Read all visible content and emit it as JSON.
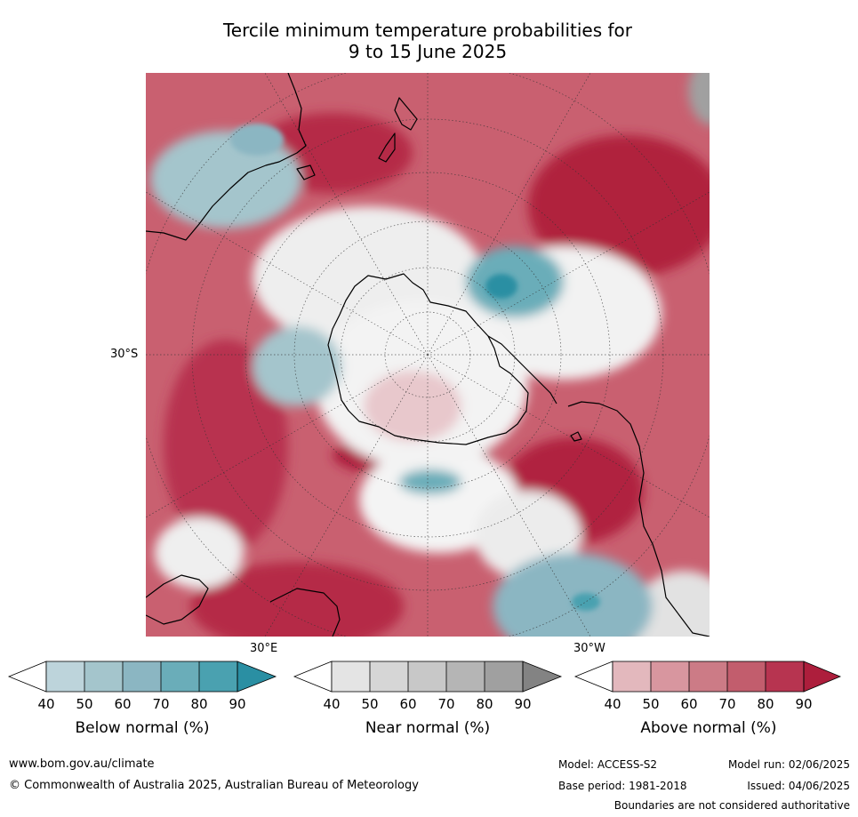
{
  "title_line1": "Tercile minimum temperature probabilities for",
  "title_line2": "9 to 15 June 2025",
  "map": {
    "lat_label": "30°S",
    "lon_label_east": "30°E",
    "lon_label_west": "30°W",
    "colors": {
      "below": [
        "#bdd4db",
        "#a4c5cc",
        "#8bb6c2",
        "#6aadb9",
        "#4aa1b0",
        "#2a8fa3"
      ],
      "near": [
        "#e4e4e4",
        "#d6d6d6",
        "#c8c8c8",
        "#b5b5b5",
        "#a0a0a0",
        "#838383"
      ],
      "above": [
        "#e3b8bd",
        "#d8969f",
        "#cc7b86",
        "#c25d6d",
        "#b73450",
        "#ad1e3c"
      ]
    }
  },
  "colorbars": [
    {
      "label": "Below normal (%)",
      "ticks": [
        "40",
        "50",
        "60",
        "70",
        "80",
        "90"
      ]
    },
    {
      "label": "Near normal (%)",
      "ticks": [
        "40",
        "50",
        "60",
        "70",
        "80",
        "90"
      ]
    },
    {
      "label": "Above normal (%)",
      "ticks": [
        "40",
        "50",
        "60",
        "70",
        "80",
        "90"
      ]
    }
  ],
  "footer": {
    "website": "www.bom.gov.au/climate",
    "copyright": "© Commonwealth of Australia 2025, Australian Bureau of Meteorology",
    "model": "Model: ACCESS-S2",
    "base_period": "Base period: 1981-2018",
    "model_run": "Model run: 02/06/2025",
    "issued": "Issued: 04/06/2025",
    "disclaimer": "Boundaries are not considered authoritative"
  }
}
